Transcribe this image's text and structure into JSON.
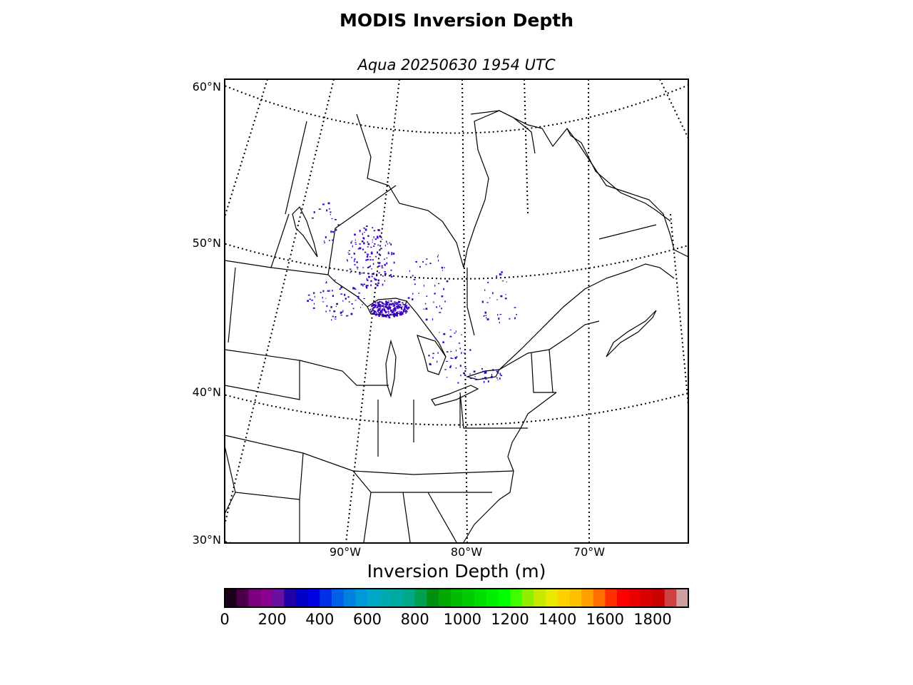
{
  "title": "MODIS Inversion Depth",
  "subtitle": "Aqua 20250630 1954 UTC",
  "map": {
    "latitude_labels": [
      {
        "text": "60°N",
        "lat": 60
      },
      {
        "text": "50°N",
        "lat": 50
      },
      {
        "text": "40°N",
        "lat": 40
      },
      {
        "text": "30°N",
        "lat": 30
      }
    ],
    "longitude_labels": [
      {
        "text": "90°W",
        "lon": -90
      },
      {
        "text": "80°W",
        "lon": -80
      },
      {
        "text": "70°W",
        "lon": -70
      }
    ],
    "graticule": "dotted",
    "inversion_pixels_color": "#3a00c8"
  },
  "colorbar": {
    "title": "Inversion Depth (m)",
    "min": 0,
    "max": 1950,
    "ticks": [
      "0",
      "200",
      "400",
      "600",
      "800",
      "1000",
      "1200",
      "1400",
      "1600",
      "1800"
    ],
    "colors": [
      "#1a0018",
      "#4a0048",
      "#7a0080",
      "#8a0090",
      "#6a10a0",
      "#2000a8",
      "#0000c8",
      "#0000e0",
      "#0030e8",
      "#0060e8",
      "#0080e0",
      "#0098d8",
      "#00a8c8",
      "#00aab0",
      "#00aaa0",
      "#00a888",
      "#00a050",
      "#009010",
      "#00a800",
      "#00bb00",
      "#00cc00",
      "#00dd00",
      "#00ee00",
      "#00ff00",
      "#40ff00",
      "#90ee00",
      "#c8e800",
      "#e8e800",
      "#ffd000",
      "#ffc000",
      "#ffa000",
      "#ff7000",
      "#ff3000",
      "#ff0000",
      "#e80000",
      "#d80000",
      "#c80000",
      "#d04040",
      "#d0a0a0"
    ]
  }
}
